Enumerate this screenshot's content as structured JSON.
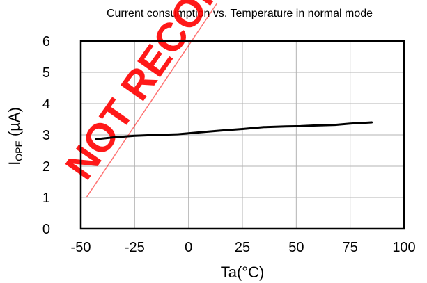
{
  "chart_data": {
    "type": "line",
    "title": "Current consumption vs. Temperature in normal mode",
    "xlabel": "Ta(°C)",
    "ylabel": {
      "main": "I",
      "subscript": "OPE",
      "unit": " (µA)"
    },
    "xlim": [
      -50,
      100
    ],
    "ylim": [
      0,
      6
    ],
    "x_ticks": [
      -50,
      -25,
      0,
      25,
      50,
      75,
      100
    ],
    "y_ticks": [
      0,
      1,
      2,
      3,
      4,
      5,
      6
    ],
    "grid": true,
    "series": [
      {
        "x": [
          -43,
          -35,
          -25,
          -15,
          -5,
          5,
          15,
          25,
          35,
          45,
          52,
          58,
          68,
          75,
          85
        ],
        "y": [
          2.86,
          2.92,
          2.97,
          3.0,
          3.02,
          3.08,
          3.14,
          3.19,
          3.25,
          3.27,
          3.28,
          3.3,
          3.32,
          3.36,
          3.4
        ]
      }
    ],
    "line_color": "#000000",
    "watermark": {
      "text": "NOT RECOMMENDED",
      "color": "#ff0000"
    }
  }
}
